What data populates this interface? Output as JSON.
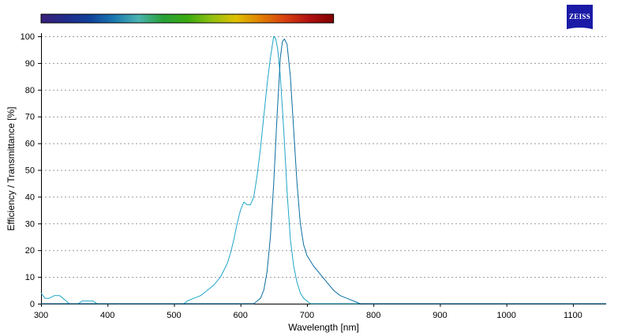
{
  "logo": {
    "text": "ZEISS",
    "color": "#1a1aa6"
  },
  "spectrum_bar": {
    "from_nm": 300,
    "to_nm": 740,
    "colors": [
      "#3a1f7a",
      "#202a8a",
      "#10409a",
      "#1a78b0",
      "#4ab4b0",
      "#28a038",
      "#3aaa10",
      "#90c010",
      "#e0c000",
      "#e08000",
      "#d84010",
      "#b01010",
      "#800000"
    ]
  },
  "chart_data": {
    "type": "line",
    "title": "",
    "xlabel": "Wavelength [nm]",
    "ylabel": "Efficiency / Transmittance [%]",
    "xlim": [
      300,
      1150
    ],
    "ylim": [
      0,
      100
    ],
    "xticks": [
      300,
      400,
      500,
      600,
      700,
      800,
      900,
      1000,
      1100
    ],
    "yticks": [
      0,
      10,
      20,
      30,
      40,
      50,
      60,
      70,
      80,
      90,
      100
    ],
    "grid": "horizontal-dotted",
    "legend": "none",
    "series": [
      {
        "color": "#1fa6c8",
        "x": [
          300,
          303,
          306,
          312,
          320,
          328,
          333,
          338,
          342,
          350,
          356,
          362,
          370,
          378,
          384,
          388,
          420,
          480,
          515,
          520,
          530,
          540,
          550,
          560,
          570,
          580,
          585,
          590,
          595,
          600,
          605,
          610,
          615,
          620,
          625,
          630,
          635,
          640,
          645,
          650,
          653,
          656,
          660,
          665,
          670,
          675,
          680,
          685,
          690,
          695,
          700,
          705,
          1150
        ],
        "y": [
          4,
          3,
          2,
          2,
          3,
          3,
          2,
          1,
          0,
          0,
          0,
          1,
          1,
          1,
          0,
          0,
          0,
          0,
          0,
          1,
          2,
          3,
          5,
          7,
          10,
          15,
          19,
          24,
          30,
          35,
          38,
          37,
          37,
          40,
          48,
          58,
          70,
          82,
          92,
          100,
          99,
          95,
          85,
          65,
          42,
          24,
          14,
          8,
          4,
          2,
          1,
          0,
          0
        ]
      },
      {
        "color": "#0b6ea0",
        "x": [
          300,
          620,
          625,
          630,
          635,
          640,
          645,
          650,
          655,
          660,
          663,
          666,
          670,
          675,
          680,
          685,
          690,
          695,
          700,
          710,
          720,
          730,
          740,
          750,
          760,
          770,
          780,
          1150
        ],
        "y": [
          0,
          0,
          1,
          2,
          5,
          12,
          25,
          45,
          70,
          92,
          98,
          99,
          97,
          85,
          65,
          45,
          30,
          22,
          18,
          14,
          11,
          8,
          5,
          3,
          2,
          1,
          0,
          0
        ]
      }
    ]
  }
}
